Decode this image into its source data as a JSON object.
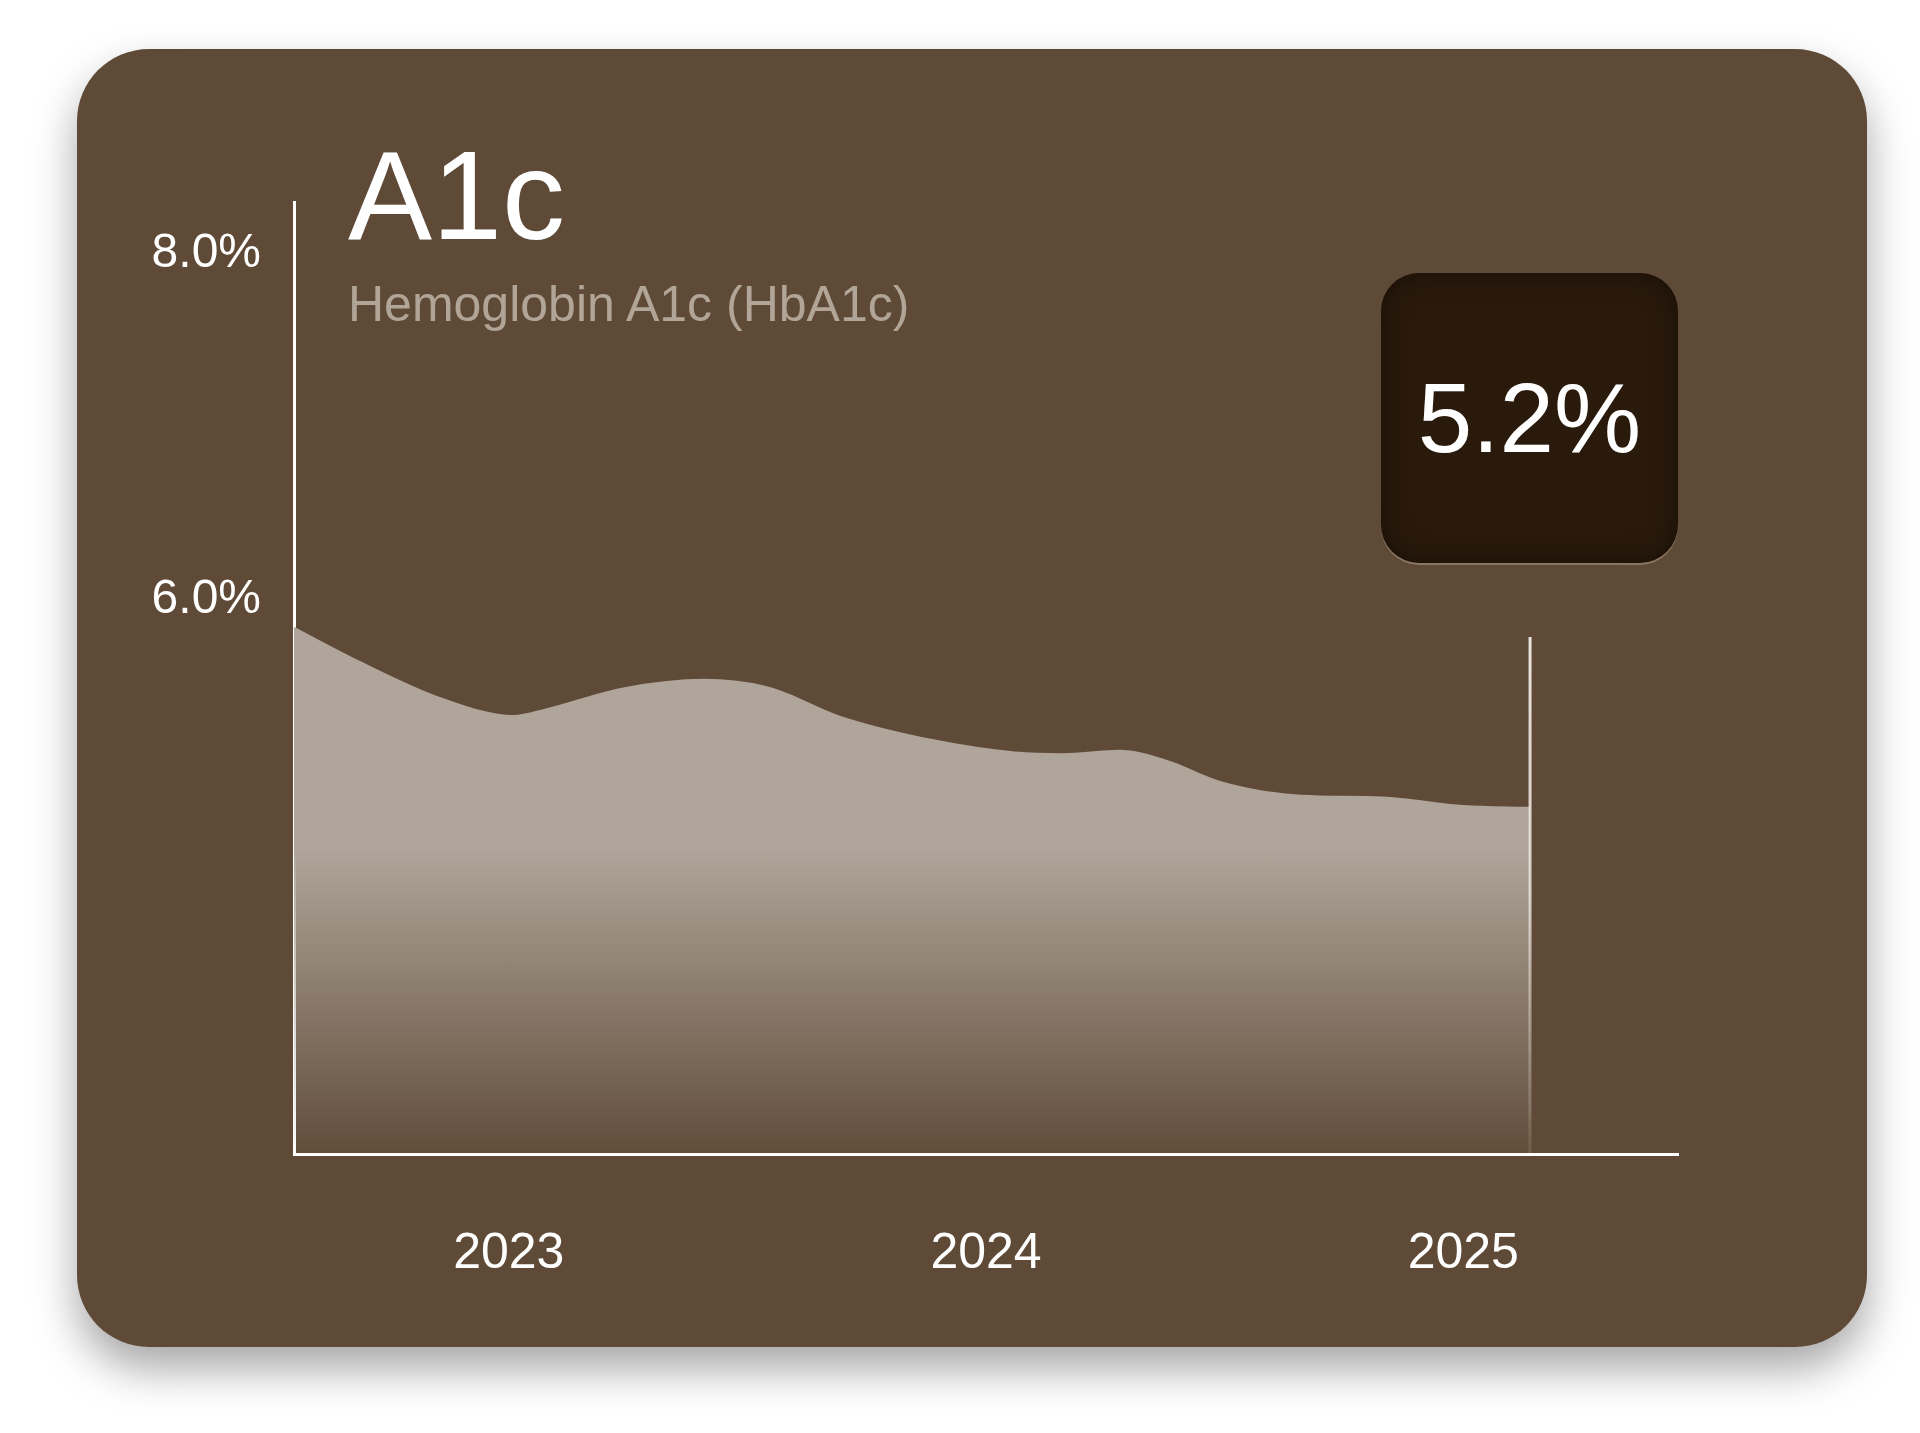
{
  "chart_data": {
    "type": "area",
    "title": "A1c",
    "subtitle": "Hemoglobin A1c (HbA1c)",
    "x": [
      2022.55,
      2022.69,
      2022.86,
      2023.01,
      2023.08,
      2023.24,
      2023.41,
      2023.55,
      2023.69,
      2023.89,
      2024.06,
      2024.16,
      2024.28,
      2024.38,
      2024.49,
      2024.66,
      2024.83,
      2025.0,
      2025.14
    ],
    "series": [
      {
        "color": "#afa59a",
        "values": [
          5.84,
          5.64,
          5.43,
          5.33,
          5.37,
          5.49,
          5.54,
          5.49,
          5.33,
          5.19,
          5.12,
          5.11,
          5.13,
          5.07,
          4.95,
          4.87,
          4.86,
          4.81,
          4.8
        ]
      }
    ],
    "xlim": [
      2022.55,
      2025.45
    ],
    "xticks": [
      2023,
      2024,
      2025
    ],
    "ylim": [
      2.8,
      8.3
    ],
    "yticks": [
      {
        "value": 8,
        "label": "8.0%"
      },
      {
        "value": 6,
        "label": "6.0%"
      }
    ],
    "ref_lines": [
      {
        "axis": "x",
        "value": 2025.14,
        "color": "#e9e3dc"
      }
    ],
    "annotations": [
      "5.2%"
    ],
    "legend": false
  }
}
